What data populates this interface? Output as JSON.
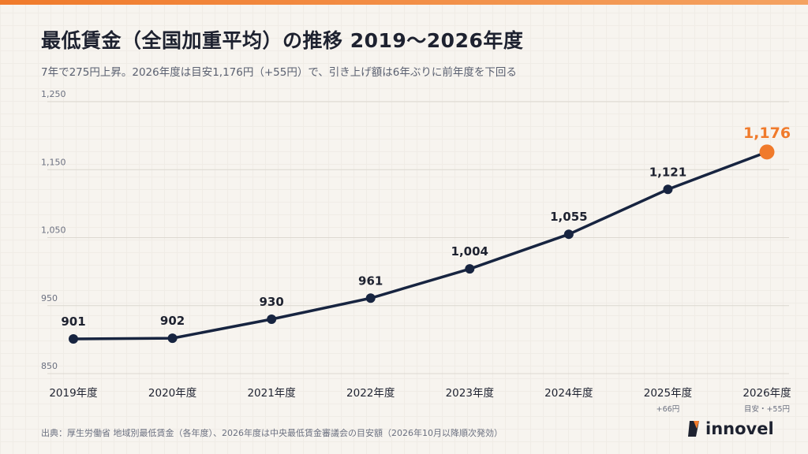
{
  "title": "最低賃金（全国加重平均）の推移 2019〜2026年度",
  "subtitle": "7年で275円上昇。2026年度は目安1,176円（+55円）で、引き上げ額は6年ぶりに前年度を下回る",
  "source": "出典：厚生労働省 地域別最低賃金（各年度）、2026年度は中央最低賃金審議会の目安額（2026年10月以降順次発効）",
  "logo": {
    "text": "innovel"
  },
  "colors": {
    "line": "#172440",
    "highlight": "#f07a2b",
    "grid": "#dcd8d0",
    "axis_text": "#6b7080"
  },
  "chart_data": {
    "type": "line",
    "categories": [
      "2019年度",
      "2020年度",
      "2021年度",
      "2022年度",
      "2023年度",
      "2024年度",
      "2025年度",
      "2026年度"
    ],
    "values": [
      901,
      902,
      930,
      961,
      1004,
      1055,
      1121,
      1176
    ],
    "value_labels": [
      "901",
      "902",
      "930",
      "961",
      "1,004",
      "1,055",
      "1,121",
      "1,176"
    ],
    "y_ticks": [
      850,
      950,
      1050,
      1150,
      1250
    ],
    "y_tick_labels": [
      "850",
      "950",
      "1,050",
      "1,150",
      "1,250"
    ],
    "ylim": [
      850,
      1250
    ],
    "grid": true,
    "highlight_index": 7,
    "annotations": [
      {
        "index": 6,
        "text": "+66円"
      },
      {
        "index": 7,
        "text": "目安・+55円"
      }
    ]
  }
}
